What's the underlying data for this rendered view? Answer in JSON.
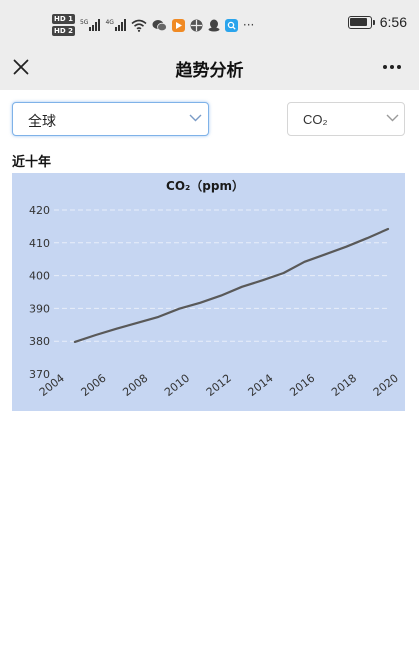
{
  "status_bar": {
    "time": "6:56",
    "ellipsis": "···",
    "hd_badges": [
      "HD 1",
      "HD 2"
    ],
    "networks": [
      "5G",
      "4G"
    ],
    "battery_percent": 90
  },
  "nav": {
    "title": "趋势分析"
  },
  "filters": {
    "region": "全球",
    "gas": "CO₂"
  },
  "section": {
    "label": "近十年"
  },
  "chart_data": {
    "type": "line",
    "title": "CO₂（ppm）",
    "xlabel": "",
    "ylabel": "",
    "ylim": [
      370,
      420
    ],
    "xlim": [
      2004,
      2020
    ],
    "grid": true,
    "x_ticks": [
      "2004",
      "2006",
      "2008",
      "2010",
      "2012",
      "2014",
      "2016",
      "2018",
      "2020"
    ],
    "y_ticks": [
      "370",
      "380",
      "390",
      "400",
      "410",
      "420"
    ],
    "series": [
      {
        "color": "#595959",
        "x": [
          2005,
          2006,
          2007,
          2008,
          2009,
          2010,
          2011,
          2012,
          2013,
          2014,
          2015,
          2016,
          2017,
          2018,
          2019,
          2020
        ],
        "y": [
          379.8,
          381.9,
          383.8,
          385.6,
          387.4,
          389.9,
          391.7,
          393.9,
          396.6,
          398.6,
          400.8,
          404.2,
          406.5,
          408.8,
          411.4,
          414.2
        ]
      }
    ]
  },
  "colors": {
    "chart_background": "#c6d6f2",
    "gridline": "#e8eef9",
    "line": "#595959",
    "focus_border": "#7fb2e8"
  }
}
